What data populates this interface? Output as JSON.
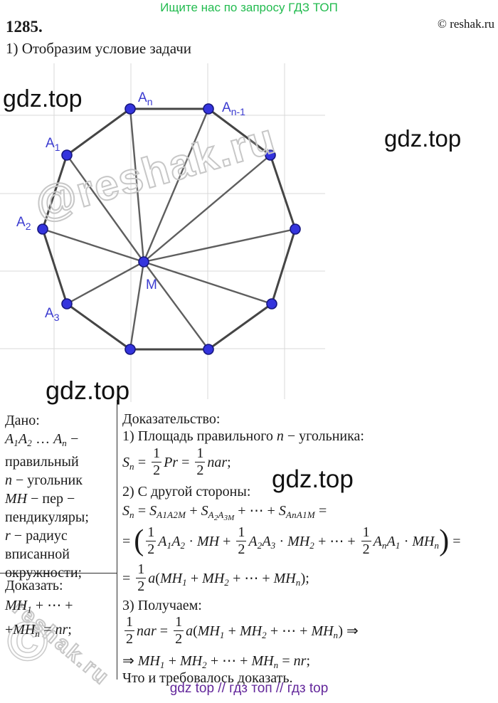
{
  "header": {
    "promo": "Ищите нас по запросу ГДЗ ТОП",
    "copyright": "© reshak.ru",
    "problem_number": "1285.",
    "step_title": "1) Отобразим условие задачи"
  },
  "colors": {
    "promo_green": "#22bb4f",
    "footer_purple": "#63279b",
    "point_blue": "#3434dd",
    "label_blue": "#3b3bd0"
  },
  "watermarks": {
    "gdz": "gdz.top",
    "reshak_diagonal": "@reshak.ru",
    "reshak_small": "reshak.ru",
    "copyright_sign": "©"
  },
  "diagram": {
    "labels": [
      {
        "main": "A",
        "sub": "n"
      },
      {
        "main": "A",
        "sub": "n-1"
      },
      {
        "main": "A",
        "sub": "1"
      },
      {
        "main": "A",
        "sub": "2"
      },
      {
        "main": "A",
        "sub": "3"
      },
      {
        "main": "M",
        "sub": ""
      }
    ]
  },
  "given": {
    "title": "Дано:",
    "lines": [
      [
        {
          "k": "i",
          "v": "A"
        },
        {
          "k": "s",
          "v": "1"
        },
        {
          "k": "i",
          "v": "A"
        },
        {
          "k": "s",
          "v": "2"
        },
        {
          "k": "t",
          "v": " … "
        },
        {
          "k": "i",
          "v": "A"
        },
        {
          "k": "s",
          "v": "n"
        },
        {
          "k": "t",
          "v": " −"
        }
      ],
      [
        {
          "k": "t",
          "v": "правильный"
        }
      ],
      [
        {
          "k": "i",
          "v": "n"
        },
        {
          "k": "t",
          "v": " − угольник"
        }
      ],
      [
        {
          "k": "i",
          "v": "MH"
        },
        {
          "k": "t",
          "v": " − пер −"
        }
      ],
      [
        {
          "k": "t",
          "v": "пендикуляры;"
        }
      ],
      [
        {
          "k": "i",
          "v": "r"
        },
        {
          "k": "t",
          "v": " − радиус"
        }
      ],
      [
        {
          "k": "t",
          "v": "вписанной"
        }
      ],
      [
        {
          "k": "t",
          "v": "окружности;"
        }
      ]
    ],
    "prove_title": "Доказать:",
    "prove_lines": [
      [
        {
          "k": "i",
          "v": "MH"
        },
        {
          "k": "s",
          "v": "1"
        },
        {
          "k": "t",
          "v": " + ⋯ +"
        }
      ],
      [
        {
          "k": "t",
          "v": "+"
        },
        {
          "k": "i",
          "v": "MH"
        },
        {
          "k": "s",
          "v": "n"
        },
        {
          "k": "t",
          "v": " = "
        },
        {
          "k": "i",
          "v": "nr"
        },
        {
          "k": "t",
          "v": ";"
        }
      ]
    ]
  },
  "proof": {
    "title": "Доказательство:",
    "step1": [
      {
        "k": "t",
        "v": "1) Площадь правильного "
      },
      {
        "k": "i",
        "v": "n"
      },
      {
        "k": "t",
        "v": " − угольника:"
      }
    ],
    "formula_area": [
      {
        "k": "i",
        "v": "S"
      },
      {
        "k": "s",
        "v": "n"
      },
      {
        "k": "t",
        "v": " = "
      },
      {
        "frac": [
          "1",
          "2"
        ]
      },
      {
        "k": "i",
        "v": "Pr"
      },
      {
        "k": "t",
        "v": " = "
      },
      {
        "frac": [
          "1",
          "2"
        ]
      },
      {
        "k": "i",
        "v": "nar"
      },
      {
        "k": "t",
        "v": ";"
      }
    ],
    "step2": "2) С другой стороны:",
    "formula_sum": [
      {
        "k": "i",
        "v": "S"
      },
      {
        "k": "s",
        "v": "n"
      },
      {
        "k": "t",
        "v": " = "
      },
      {
        "k": "i",
        "v": "S"
      },
      {
        "k": "s",
        "v": "A1A2M"
      },
      {
        "k": "t",
        "v": " + "
      },
      {
        "k": "i",
        "v": "S"
      },
      {
        "k": "s",
        "v": "A"
      },
      {
        "k": "ss",
        "v": "2"
      },
      {
        "k": "s",
        "v": "A"
      },
      {
        "k": "ss",
        "v": "3M"
      },
      {
        "k": "t",
        "v": " + ⋯ + "
      },
      {
        "k": "i",
        "v": "S"
      },
      {
        "k": "s",
        "v": "AnA1M"
      },
      {
        "k": "t",
        "v": " ="
      }
    ],
    "formula_expand": [
      {
        "k": "t",
        "v": "= "
      },
      {
        "k": "big",
        "v": "("
      },
      {
        "frac": [
          "1",
          "2"
        ]
      },
      {
        "k": "i",
        "v": "A"
      },
      {
        "k": "s",
        "v": "1"
      },
      {
        "k": "i",
        "v": "A"
      },
      {
        "k": "s",
        "v": "2"
      },
      {
        "k": "t",
        "v": " · "
      },
      {
        "k": "i",
        "v": "MH"
      },
      {
        "k": "t",
        "v": " + "
      },
      {
        "frac": [
          "1",
          "2"
        ]
      },
      {
        "k": "i",
        "v": "A"
      },
      {
        "k": "s",
        "v": "2"
      },
      {
        "k": "i",
        "v": "A"
      },
      {
        "k": "s",
        "v": "3"
      },
      {
        "k": "t",
        "v": " · "
      },
      {
        "k": "i",
        "v": "MH"
      },
      {
        "k": "s",
        "v": "2"
      },
      {
        "k": "t",
        "v": " + ⋯ + "
      },
      {
        "frac": [
          "1",
          "2"
        ]
      },
      {
        "k": "i",
        "v": "A"
      },
      {
        "k": "s",
        "v": "n"
      },
      {
        "k": "i",
        "v": "A"
      },
      {
        "k": "s",
        "v": "1"
      },
      {
        "k": "t",
        "v": " · "
      },
      {
        "k": "i",
        "v": "MH"
      },
      {
        "k": "s",
        "v": "n"
      },
      {
        "k": "big",
        "v": ")"
      },
      {
        "k": "t",
        "v": " ="
      }
    ],
    "formula_half_a": [
      {
        "k": "t",
        "v": "= "
      },
      {
        "frac": [
          "1",
          "2"
        ]
      },
      {
        "k": "i",
        "v": "a"
      },
      {
        "k": "t",
        "v": "("
      },
      {
        "k": "i",
        "v": "MH"
      },
      {
        "k": "s",
        "v": "1"
      },
      {
        "k": "t",
        "v": " + "
      },
      {
        "k": "i",
        "v": "MH"
      },
      {
        "k": "s",
        "v": "2"
      },
      {
        "k": "t",
        "v": " + ⋯ + "
      },
      {
        "k": "i",
        "v": "MH"
      },
      {
        "k": "s",
        "v": "n"
      },
      {
        "k": "t",
        "v": ");"
      }
    ],
    "step3": "3) Получаем:",
    "formula_equate": [
      {
        "frac": [
          "1",
          "2"
        ]
      },
      {
        "k": "i",
        "v": "nar"
      },
      {
        "k": "t",
        "v": " = "
      },
      {
        "frac": [
          "1",
          "2"
        ]
      },
      {
        "k": "i",
        "v": "a"
      },
      {
        "k": "t",
        "v": "("
      },
      {
        "k": "i",
        "v": "MH"
      },
      {
        "k": "s",
        "v": "1"
      },
      {
        "k": "t",
        "v": " + "
      },
      {
        "k": "i",
        "v": "MH"
      },
      {
        "k": "s",
        "v": "2"
      },
      {
        "k": "t",
        "v": " + ⋯ + "
      },
      {
        "k": "i",
        "v": "MH"
      },
      {
        "k": "s",
        "v": "n"
      },
      {
        "k": "t",
        "v": ") ⇒"
      }
    ],
    "formula_result": [
      {
        "k": "t",
        "v": "⇒ "
      },
      {
        "k": "i",
        "v": "MH"
      },
      {
        "k": "s",
        "v": "1"
      },
      {
        "k": "t",
        "v": " + "
      },
      {
        "k": "i",
        "v": "MH"
      },
      {
        "k": "s",
        "v": "2"
      },
      {
        "k": "t",
        "v": " + ⋯ + "
      },
      {
        "k": "i",
        "v": "MH"
      },
      {
        "k": "s",
        "v": "n"
      },
      {
        "k": "t",
        "v": " = "
      },
      {
        "k": "i",
        "v": "nr"
      },
      {
        "k": "t",
        "v": ";"
      }
    ],
    "qed": "Что и требовалось доказать."
  },
  "footer": {
    "text": "gdz top  //  гдз топ  //  гдз top"
  }
}
